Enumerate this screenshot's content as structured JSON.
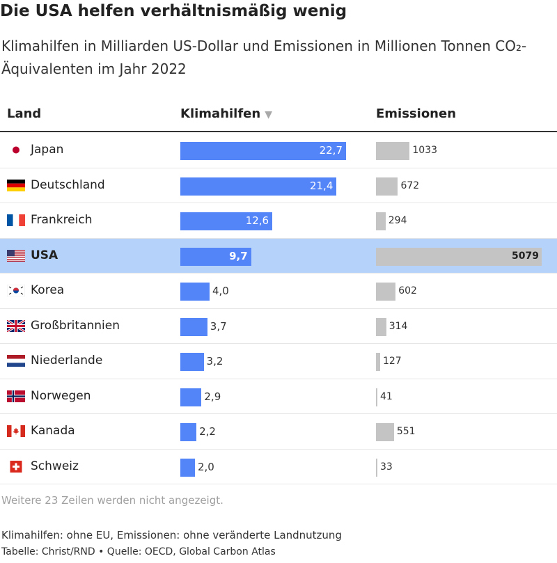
{
  "title": "Die USA helfen verhältnismäßig wenig",
  "subtitle": "Klimahilfen in Milliarden US-Dollar und Emissionen in Millionen Tonnen CO₂-Äquivalenten im Jahr 2022",
  "columns": {
    "land": "Land",
    "klimahilfen": "Klimahilfen",
    "emissionen": "Emissionen",
    "sort_indicator": "▼"
  },
  "more_rows": "Weitere 23 Zeilen werden nicht angezeigt.",
  "note": "Klimahilfen: ohne EU, Emissionen: ohne veränderte Landnutzung",
  "source": "Tabelle: Christ/RND • Quelle: OECD, Global Carbon Atlas",
  "colors": {
    "klimahilfen_bar": "#5384f8",
    "emissionen_bar": "#c4c4c4",
    "highlight_row": "#b4d2fa"
  },
  "chart_data": {
    "type": "table",
    "highlighted": "USA",
    "rows": [
      {
        "land": "Japan",
        "flag": "flag-japan",
        "klimahilfen": 22.7,
        "klimahilfen_label": "22,7",
        "emissionen": 1033,
        "emissionen_label": "1033"
      },
      {
        "land": "Deutschland",
        "flag": "flag-germany",
        "klimahilfen": 21.4,
        "klimahilfen_label": "21,4",
        "emissionen": 672,
        "emissionen_label": "672"
      },
      {
        "land": "Frankreich",
        "flag": "flag-france",
        "klimahilfen": 12.6,
        "klimahilfen_label": "12,6",
        "emissionen": 294,
        "emissionen_label": "294"
      },
      {
        "land": "USA",
        "flag": "flag-usa",
        "klimahilfen": 9.7,
        "klimahilfen_label": "9,7",
        "emissionen": 5079,
        "emissionen_label": "5079"
      },
      {
        "land": "Korea",
        "flag": "flag-korea",
        "klimahilfen": 4.0,
        "klimahilfen_label": "4,0",
        "emissionen": 602,
        "emissionen_label": "602"
      },
      {
        "land": "Großbritannien",
        "flag": "flag-uk",
        "klimahilfen": 3.7,
        "klimahilfen_label": "3,7",
        "emissionen": 314,
        "emissionen_label": "314"
      },
      {
        "land": "Niederlande",
        "flag": "flag-netherlands",
        "klimahilfen": 3.2,
        "klimahilfen_label": "3,2",
        "emissionen": 127,
        "emissionen_label": "127"
      },
      {
        "land": "Norwegen",
        "flag": "flag-norway",
        "klimahilfen": 2.9,
        "klimahilfen_label": "2,9",
        "emissionen": 41,
        "emissionen_label": "41"
      },
      {
        "land": "Kanada",
        "flag": "flag-canada",
        "klimahilfen": 2.2,
        "klimahilfen_label": "2,2",
        "emissionen": 551,
        "emissionen_label": "551"
      },
      {
        "land": "Schweiz",
        "flag": "flag-switzerland",
        "klimahilfen": 2.0,
        "klimahilfen_label": "2,0",
        "emissionen": 33,
        "emissionen_label": "33"
      }
    ]
  }
}
